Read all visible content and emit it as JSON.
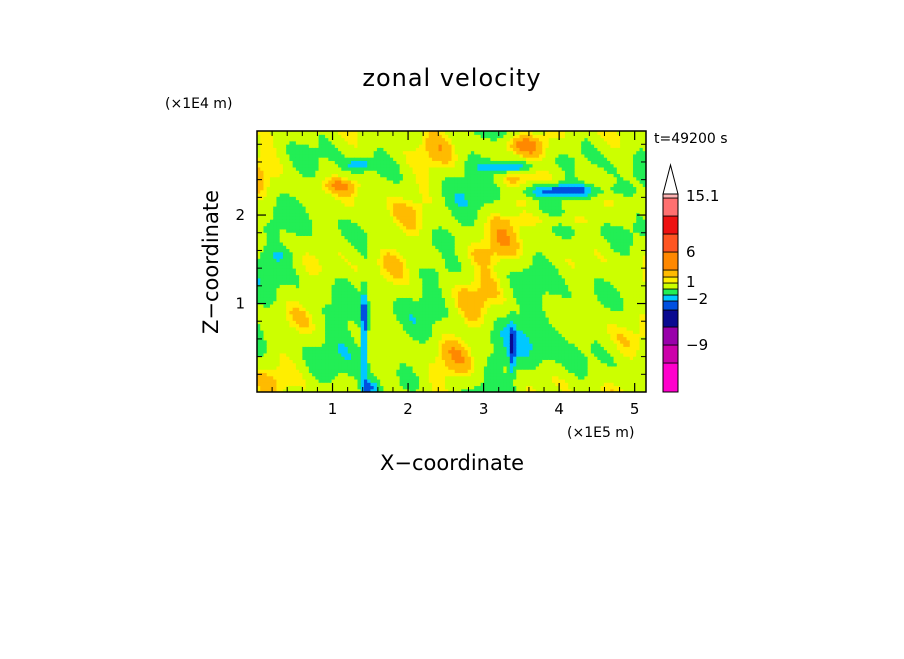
{
  "chart_data": {
    "type": "heatmap",
    "title": "zonal velocity",
    "xlabel": "X−coordinate",
    "ylabel": "Z−coordinate",
    "x_scale_note": "(×1E5 m)",
    "y_scale_note": "(×1E4 m)",
    "time_label": "t=49200 s",
    "xlim": [
      0,
      5.15
    ],
    "ylim": [
      0,
      2.95
    ],
    "x_ticks": [
      "1",
      "2",
      "3",
      "4",
      "5"
    ],
    "y_ticks": [
      "1",
      "2"
    ],
    "colorbar": {
      "labels": [
        "15.1",
        "6",
        "1",
        "−2",
        "−9"
      ],
      "level_colors": [
        "#ff00cc",
        "#cc00aa",
        "#9900aa",
        "#0a0a90",
        "#0050e0",
        "#00c8ff",
        "#22ee55",
        "#ccff00",
        "#ffee00",
        "#ffbb00",
        "#ff8800",
        "#ff5522",
        "#ee1111",
        "#ff7070",
        "#ffb4b4",
        "#ffffff"
      ]
    }
  }
}
